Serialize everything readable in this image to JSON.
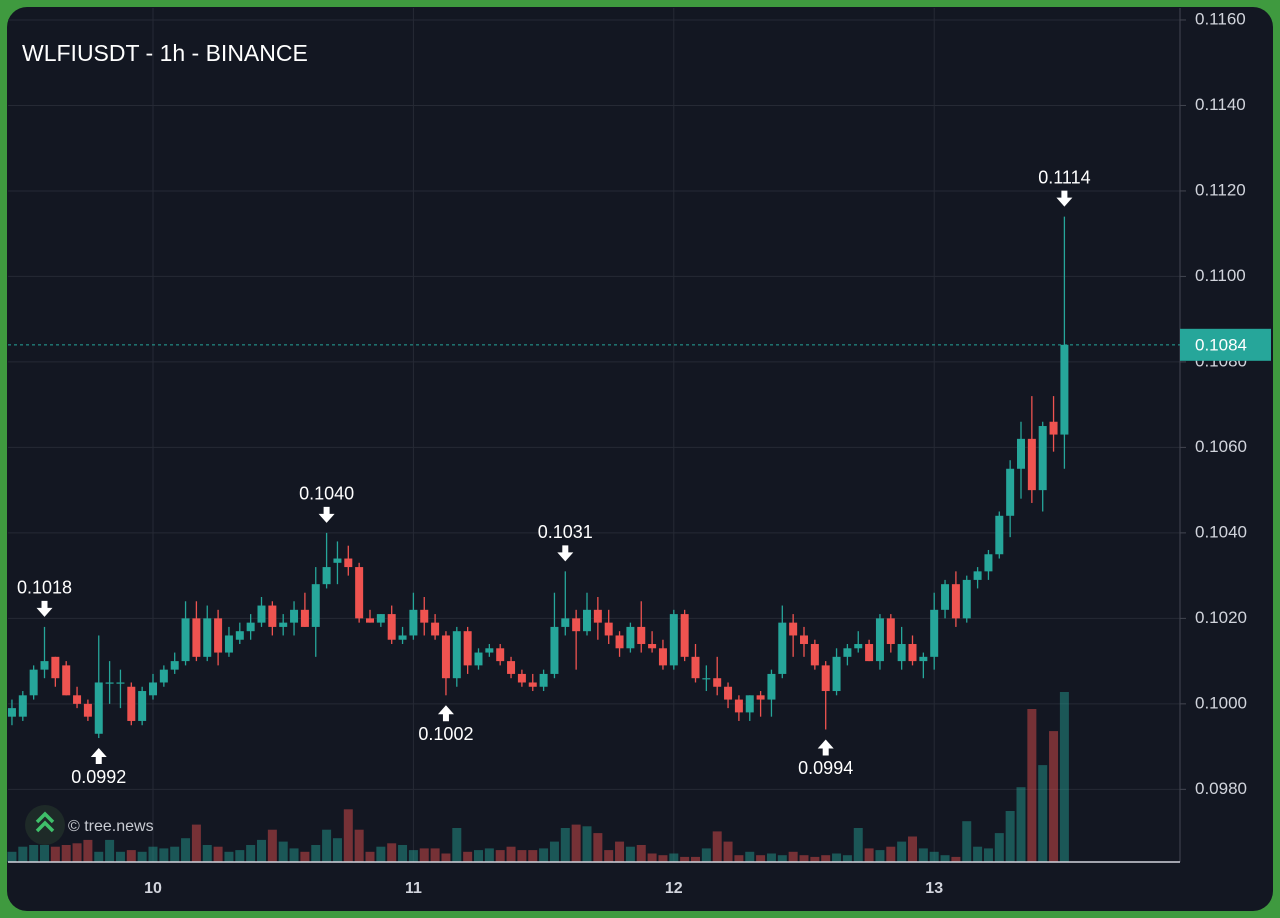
{
  "chart_data": {
    "type": "candlestick",
    "title": "WLFIUSDT - 1h - BINANCE",
    "watermark": "© tree.news",
    "categories": [
      null,
      null,
      null,
      null,
      null,
      null,
      null,
      null,
      null,
      null,
      null,
      null,
      null,
      "10",
      null,
      null,
      null,
      null,
      null,
      null,
      null,
      null,
      null,
      null,
      null,
      null,
      null,
      null,
      null,
      null,
      null,
      null,
      null,
      null,
      null,
      null,
      null,
      "11",
      null,
      null,
      null,
      null,
      null,
      null,
      null,
      null,
      null,
      null,
      null,
      null,
      null,
      null,
      null,
      null,
      null,
      null,
      null,
      null,
      null,
      null,
      null,
      "12",
      null,
      null,
      null,
      null,
      null,
      null,
      null,
      null,
      null,
      null,
      null,
      null,
      null,
      null,
      null,
      null,
      null,
      null,
      null,
      null,
      null,
      null,
      null,
      "13",
      null,
      null,
      null,
      null,
      null,
      null,
      null,
      null,
      null,
      null,
      null,
      null
    ],
    "open": [
      0.0997,
      0.0997,
      0.1002,
      0.1008,
      0.1011,
      0.1009,
      0.1002,
      0.1,
      0.0993,
      0.1005,
      0.1005,
      0.1004,
      0.0996,
      0.1002,
      0.1005,
      0.1008,
      0.101,
      0.102,
      0.1011,
      0.102,
      0.1012,
      0.1015,
      0.1017,
      0.1019,
      0.1023,
      0.1018,
      0.1019,
      0.1022,
      0.1018,
      0.1028,
      0.1033,
      0.1034,
      0.1032,
      0.102,
      0.1019,
      0.1021,
      0.1015,
      0.1016,
      0.1022,
      0.1019,
      0.1016,
      0.1006,
      0.1017,
      0.1009,
      0.1012,
      0.1013,
      0.101,
      0.1007,
      0.1005,
      0.1004,
      0.1007,
      0.1018,
      0.102,
      0.1017,
      0.1022,
      0.1019,
      0.1016,
      0.1013,
      0.1018,
      0.1014,
      0.1013,
      0.1009,
      0.1021,
      0.1011,
      0.1006,
      0.1006,
      0.1004,
      0.1001,
      0.0998,
      0.1002,
      0.1001,
      0.1007,
      0.1019,
      0.1016,
      0.1014,
      0.1009,
      0.1003,
      0.1011,
      0.1013,
      0.1014,
      0.101,
      0.102,
      0.101,
      0.1014,
      0.101,
      0.1011,
      0.1022,
      0.1028,
      0.102,
      0.1029,
      0.1031,
      0.1035,
      0.1044,
      0.1055,
      0.1062,
      0.105,
      0.1066,
      0.1063
    ],
    "high": [
      0.1001,
      0.1003,
      0.1009,
      0.1018,
      0.1011,
      0.101,
      0.1004,
      0.1001,
      0.1016,
      0.101,
      0.1008,
      0.1005,
      0.1004,
      0.1007,
      0.1009,
      0.1012,
      0.1024,
      0.1024,
      0.1023,
      0.1022,
      0.1018,
      0.1019,
      0.1021,
      0.1025,
      0.1024,
      0.1021,
      0.1024,
      0.1026,
      0.1032,
      0.104,
      0.1038,
      0.1037,
      0.1033,
      0.1022,
      0.1021,
      0.1023,
      0.1018,
      0.1026,
      0.1025,
      0.1021,
      0.1017,
      0.1018,
      0.1018,
      0.1013,
      0.1014,
      0.1014,
      0.1011,
      0.1008,
      0.1007,
      0.1008,
      0.1026,
      0.1031,
      0.1022,
      0.1026,
      0.1025,
      0.1022,
      0.1017,
      0.1019,
      0.1024,
      0.1017,
      0.1015,
      0.1022,
      0.1022,
      0.1014,
      0.1009,
      0.1011,
      0.1005,
      0.1002,
      0.1002,
      0.1003,
      0.1008,
      0.1023,
      0.1021,
      0.1018,
      0.1015,
      0.101,
      0.1013,
      0.1014,
      0.1017,
      0.1015,
      0.1021,
      0.1021,
      0.1018,
      0.1016,
      0.1012,
      0.1026,
      0.1029,
      0.1031,
      0.103,
      0.1032,
      0.1036,
      0.1045,
      0.1057,
      0.1066,
      0.1072,
      0.1066,
      0.1072,
      0.1114
    ],
    "low": [
      0.0995,
      0.0996,
      0.1001,
      0.1006,
      0.1004,
      0.1002,
      0.0999,
      0.0996,
      0.0992,
      0.1,
      0.0999,
      0.0995,
      0.0995,
      0.1001,
      0.1004,
      0.1007,
      0.1009,
      0.101,
      0.101,
      0.1009,
      0.1011,
      0.1014,
      0.1015,
      0.1018,
      0.1016,
      0.1016,
      0.1016,
      0.1018,
      0.1011,
      0.1027,
      0.1028,
      0.103,
      0.1019,
      0.1019,
      0.1018,
      0.1014,
      0.1014,
      0.1015,
      0.1016,
      0.1015,
      0.1002,
      0.1004,
      0.1007,
      0.1008,
      0.1011,
      0.1009,
      0.1006,
      0.1004,
      0.1003,
      0.1003,
      0.1006,
      0.1016,
      0.1008,
      0.1016,
      0.1015,
      0.1014,
      0.1011,
      0.1012,
      0.1012,
      0.1012,
      0.1008,
      0.1008,
      0.101,
      0.1005,
      0.1003,
      0.1002,
      0.0999,
      0.0996,
      0.0996,
      0.0997,
      0.0997,
      0.1006,
      0.1011,
      0.1011,
      0.1008,
      0.0994,
      0.1002,
      0.1009,
      0.1012,
      0.101,
      0.1008,
      0.1012,
      0.1008,
      0.1009,
      0.1006,
      0.1008,
      0.102,
      0.1018,
      0.1019,
      0.1027,
      0.1029,
      0.1034,
      0.1039,
      0.1048,
      0.1047,
      0.1045,
      0.1059,
      0.1055
    ],
    "close": [
      0.0999,
      0.1002,
      0.1008,
      0.101,
      0.1006,
      0.1002,
      0.1,
      0.0997,
      0.1005,
      0.1005,
      0.1005,
      0.0996,
      0.1003,
      0.1005,
      0.1008,
      0.101,
      0.102,
      0.1011,
      0.102,
      0.1012,
      0.1016,
      0.1017,
      0.1019,
      0.1023,
      0.1018,
      0.1019,
      0.1022,
      0.1018,
      0.1028,
      0.1032,
      0.1034,
      0.1032,
      0.102,
      0.1019,
      0.1021,
      0.1015,
      0.1016,
      0.1022,
      0.1019,
      0.1016,
      0.1006,
      0.1017,
      0.1009,
      0.1012,
      0.1013,
      0.101,
      0.1007,
      0.1005,
      0.1004,
      0.1007,
      0.1018,
      0.102,
      0.1017,
      0.1022,
      0.1019,
      0.1016,
      0.1013,
      0.1018,
      0.1014,
      0.1013,
      0.1009,
      0.1021,
      0.1011,
      0.1006,
      0.1006,
      0.1004,
      0.1001,
      0.0998,
      0.1002,
      0.1001,
      0.1007,
      0.1019,
      0.1016,
      0.1014,
      0.1009,
      0.1003,
      0.1011,
      0.1013,
      0.1014,
      0.101,
      0.102,
      0.1014,
      0.1014,
      0.101,
      0.1011,
      0.1022,
      0.1028,
      0.102,
      0.1029,
      0.1031,
      0.1035,
      0.1044,
      0.1055,
      0.1062,
      0.105,
      0.1065,
      0.1063,
      0.1084
    ],
    "volume": [
      6,
      9,
      10,
      10,
      9,
      10,
      11,
      13,
      6,
      13,
      6,
      7,
      6,
      9,
      8,
      9,
      14,
      22,
      10,
      9,
      6,
      7,
      10,
      13,
      19,
      12,
      8,
      6,
      10,
      19,
      14,
      31,
      19,
      6,
      9,
      11,
      10,
      7,
      8,
      8,
      5,
      20,
      6,
      7,
      8,
      7,
      9,
      7,
      7,
      8,
      12,
      20,
      22,
      21,
      17,
      7,
      12,
      9,
      10,
      5,
      4,
      5,
      3,
      3,
      8,
      18,
      12,
      4,
      6,
      4,
      5,
      4,
      6,
      4,
      3,
      4,
      5,
      4,
      20,
      8,
      7,
      9,
      12,
      15,
      8,
      6,
      4,
      3,
      24,
      9,
      8,
      17,
      30,
      44,
      90,
      57,
      77,
      100
    ],
    "up_color": "#26a69a",
    "down_color": "#ef5350",
    "ylim": [
      0.0963,
      0.11628
    ],
    "yticks": [
      {
        "value": 0.098,
        "label": "0.0980"
      },
      {
        "value": 0.1,
        "label": "0.1000"
      },
      {
        "value": 0.102,
        "label": "0.1020"
      },
      {
        "value": 0.104,
        "label": "0.1040"
      },
      {
        "value": 0.106,
        "label": "0.1060"
      },
      {
        "value": 0.108,
        "label": "0.1080"
      },
      {
        "value": 0.11,
        "label": "0.1100"
      },
      {
        "value": 0.112,
        "label": "0.1120"
      },
      {
        "value": 0.114,
        "label": "0.1140"
      },
      {
        "value": 0.116,
        "label": "0.1160"
      }
    ],
    "last_price": {
      "value": 0.1084,
      "label": "0.1084"
    },
    "annotations": [
      {
        "label": "0.1018",
        "index": 3,
        "at": "high"
      },
      {
        "label": "0.0992",
        "index": 8,
        "at": "low"
      },
      {
        "label": "0.1040",
        "index": 29,
        "at": "high"
      },
      {
        "label": "0.1002",
        "index": 40,
        "at": "low"
      },
      {
        "label": "0.1031",
        "index": 51,
        "at": "high"
      },
      {
        "label": "0.0994",
        "index": 75,
        "at": "low"
      },
      {
        "label": "0.1114",
        "index": 97,
        "at": "high"
      }
    ],
    "grid": true
  }
}
